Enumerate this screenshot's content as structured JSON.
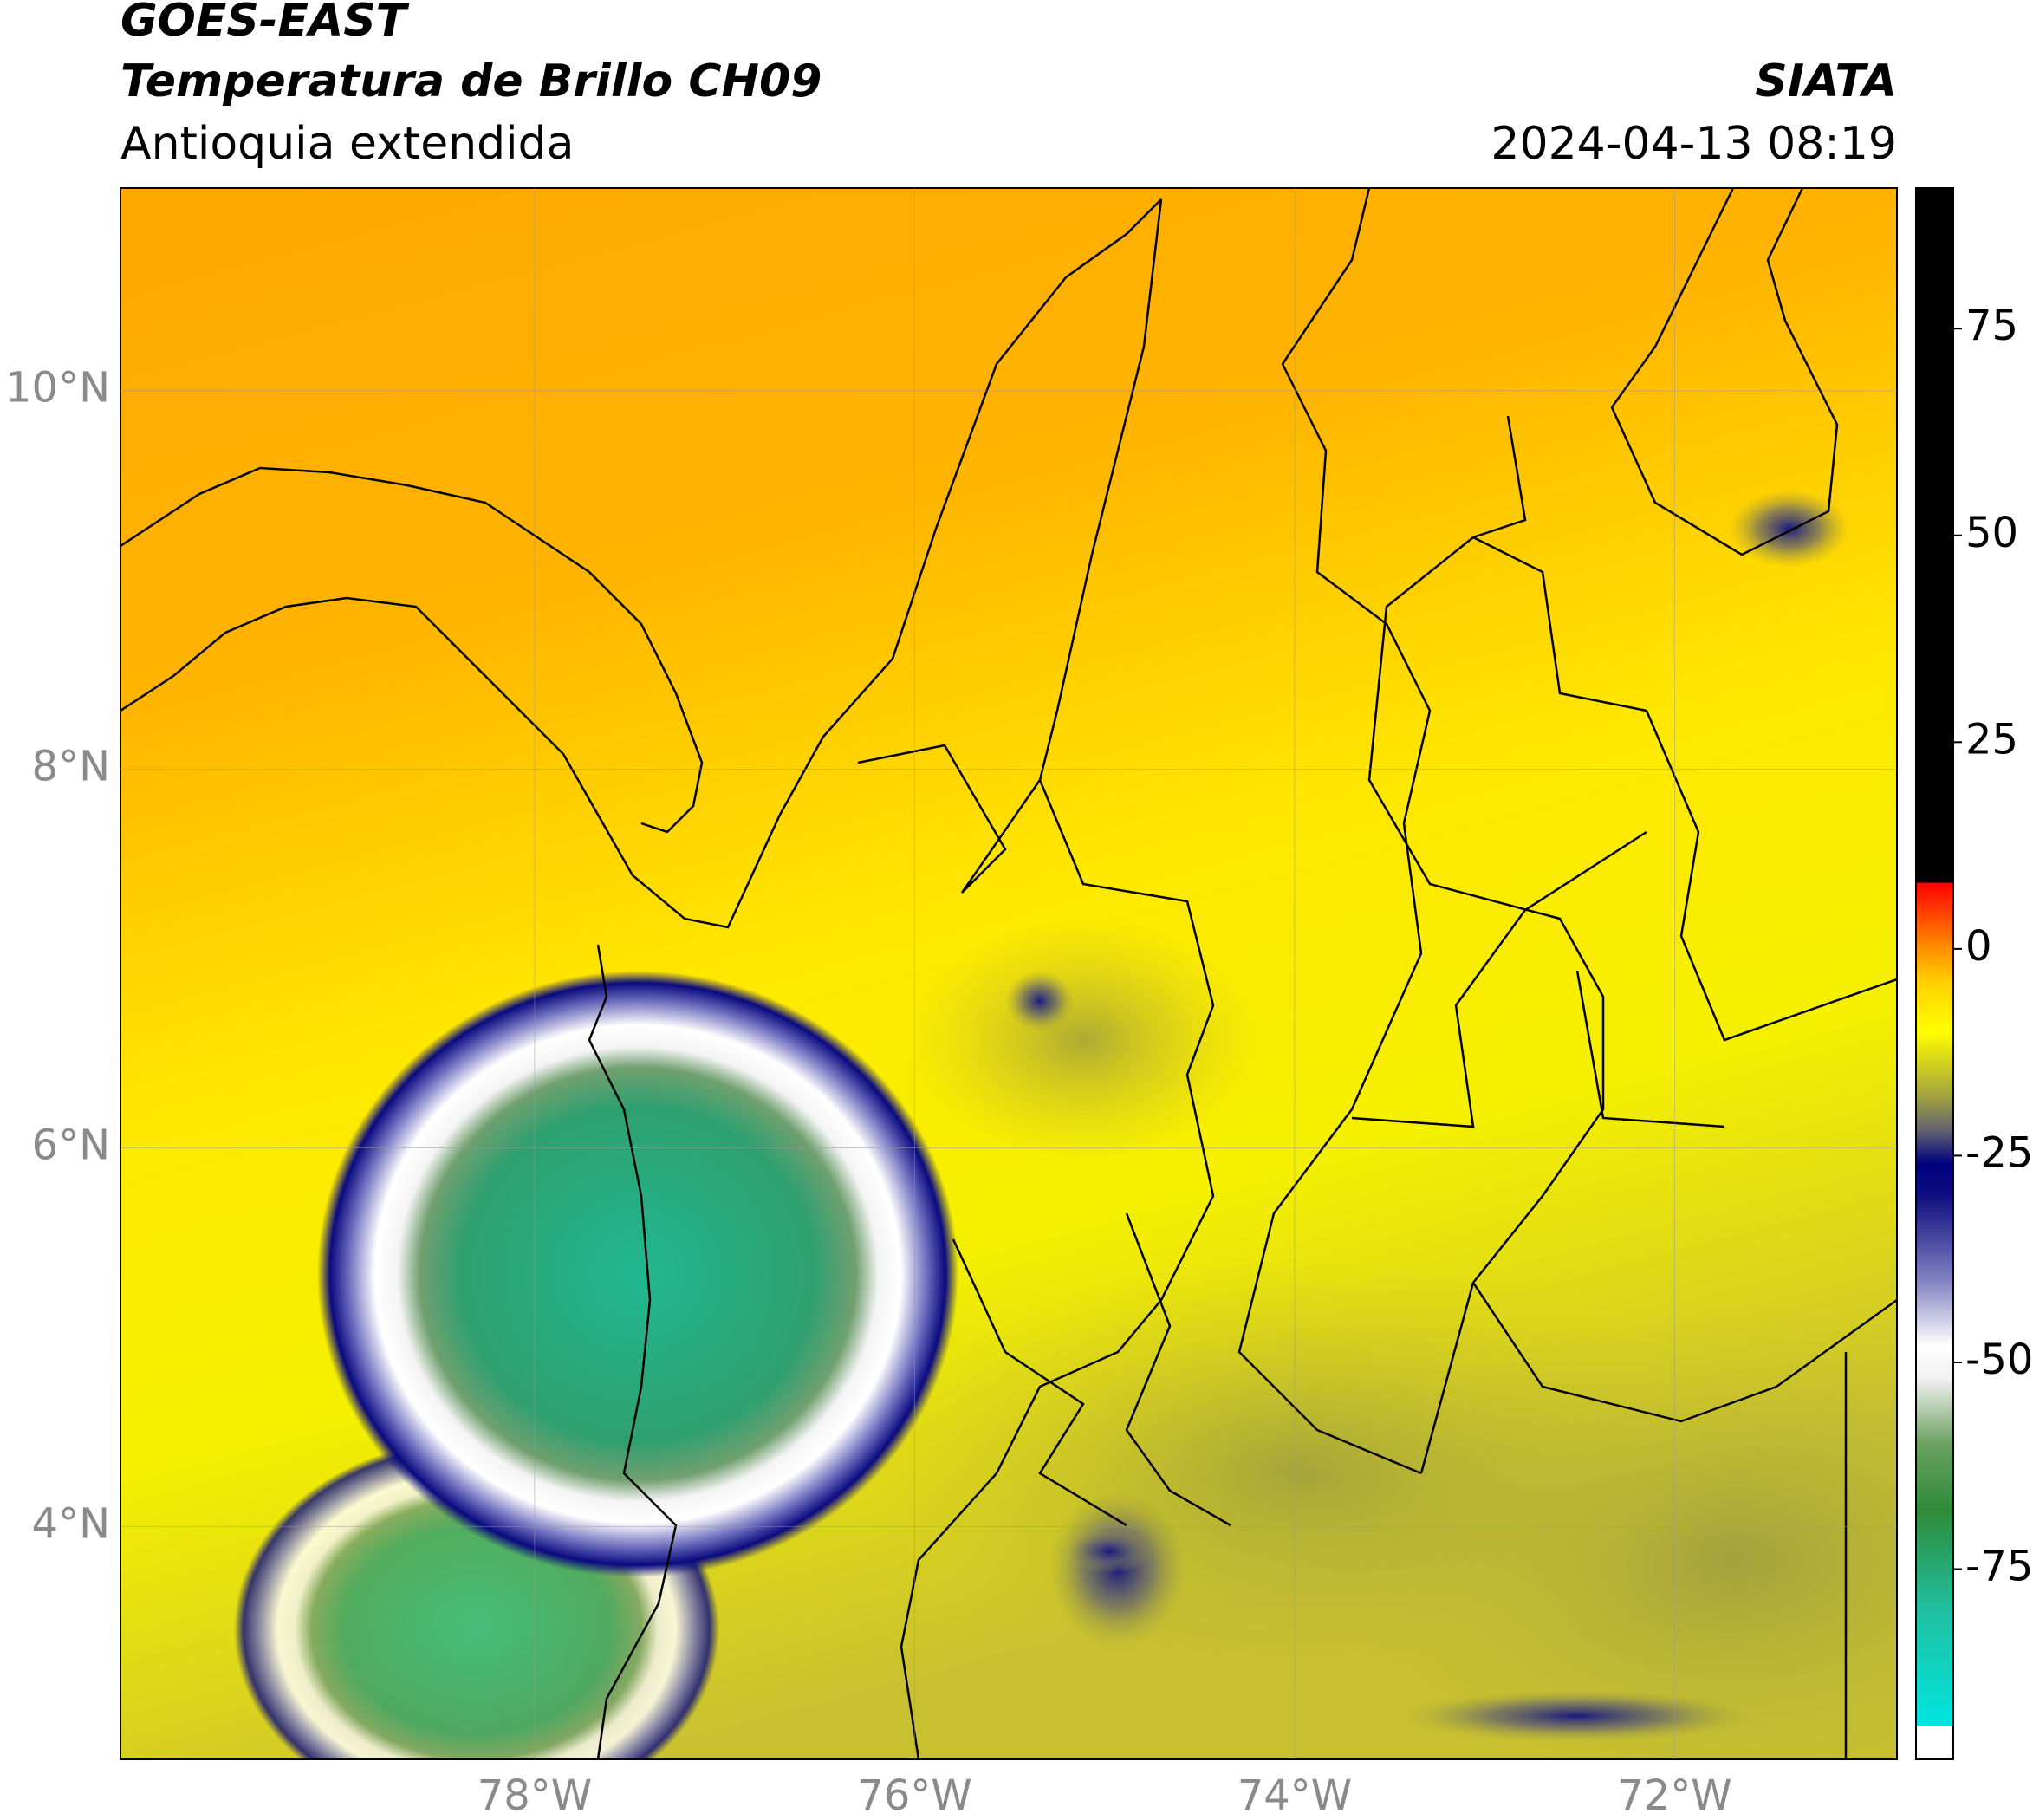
{
  "header": {
    "title": "GOES-EAST",
    "subtitle": "Temperatura de Brillo CH09",
    "region": "Antioquia extendida",
    "agency": "SIATA",
    "datetime": "2024-04-13 08:19"
  },
  "map": {
    "xlim": [
      -80.18,
      -70.83
    ],
    "ylim": [
      2.77,
      11.07
    ],
    "xticks": [
      {
        "value": -78,
        "label": "78°W"
      },
      {
        "value": -76,
        "label": "76°W"
      },
      {
        "value": -74,
        "label": "74°W"
      },
      {
        "value": -72,
        "label": "72°W"
      }
    ],
    "yticks": [
      {
        "value": 4,
        "label": "4°N"
      },
      {
        "value": 6,
        "label": "6°N"
      },
      {
        "value": 8,
        "label": "8°N"
      },
      {
        "value": 10,
        "label": "10°N"
      }
    ],
    "grid": true
  },
  "colorbar": {
    "lim": [
      -98,
      92
    ],
    "ticks": [
      -75,
      -50,
      -25,
      0,
      25,
      50,
      75
    ],
    "colorscale": [
      [
        -98,
        "#ffffff"
      ],
      [
        -94,
        "#ffffff"
      ],
      [
        -94,
        "#00e5e0"
      ],
      [
        -80,
        "#20c0a0"
      ],
      [
        -68,
        "#2e8b3a"
      ],
      [
        -60,
        "#6aa060"
      ],
      [
        -52,
        "#f0f0f0"
      ],
      [
        -48,
        "#ffffff"
      ],
      [
        -40,
        "#8080c0"
      ],
      [
        -30,
        "#101080"
      ],
      [
        -26,
        "#000080"
      ],
      [
        -22,
        "#606070"
      ],
      [
        -18,
        "#a0a040"
      ],
      [
        -10,
        "#ffff00"
      ],
      [
        -4,
        "#ffd000"
      ],
      [
        0,
        "#ff9000"
      ],
      [
        8,
        "#ff0000"
      ],
      [
        8,
        "#000000"
      ],
      [
        92,
        "#000000"
      ]
    ]
  }
}
